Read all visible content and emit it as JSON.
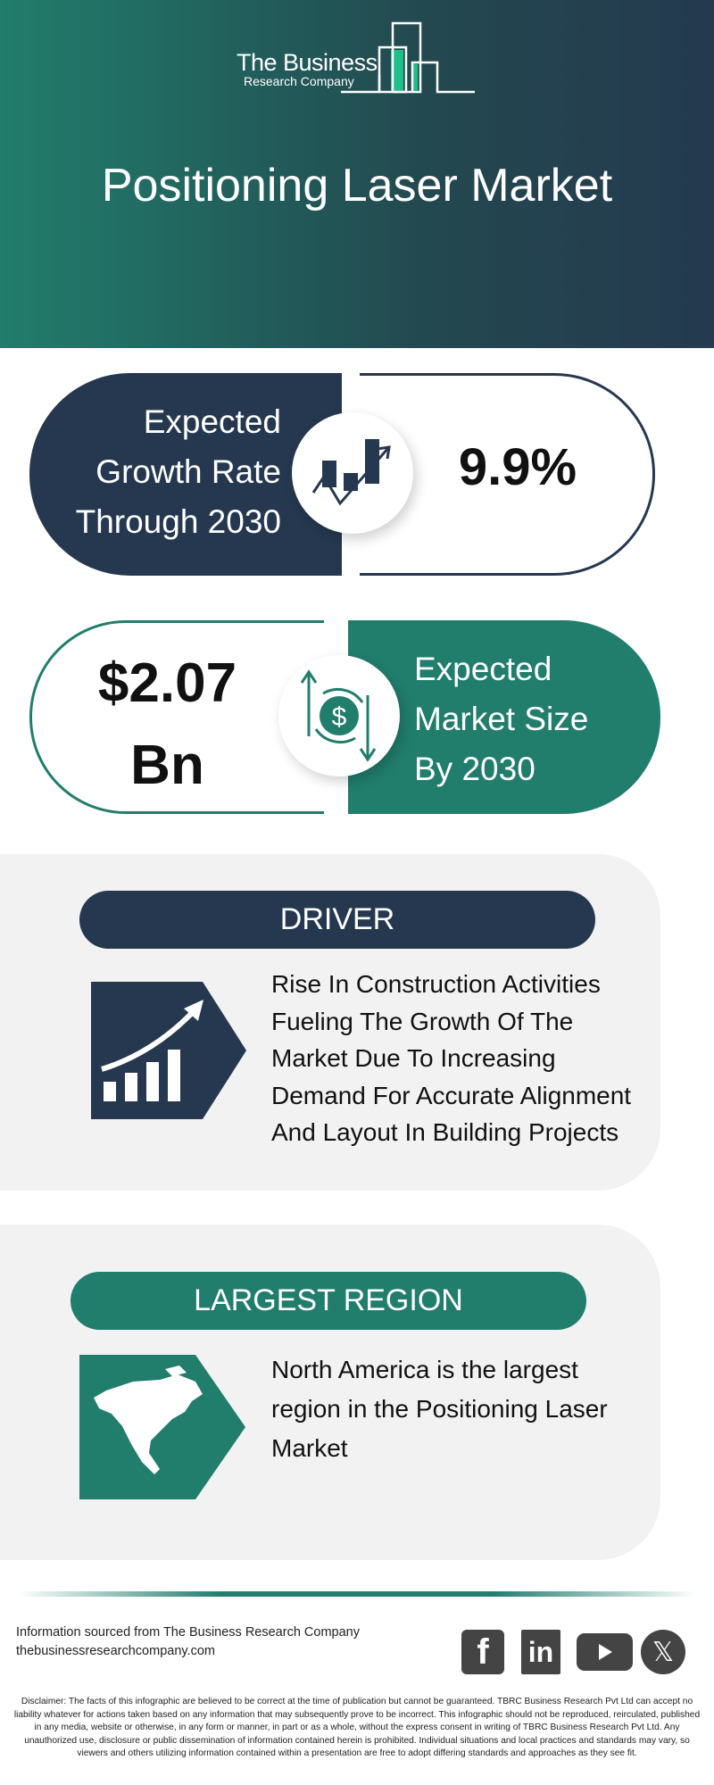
{
  "header": {
    "logo": {
      "line1": "The Business",
      "line2": "Research Company"
    },
    "title": "Positioning Laser Market"
  },
  "growth": {
    "label_lines": [
      "Expected",
      "Growth Rate",
      "Through 2030"
    ],
    "value": "9.9%",
    "icon": "growth-chart-icon"
  },
  "market_size": {
    "value_lines": [
      "$2.07",
      "Bn"
    ],
    "label_lines": [
      "Expected",
      "Market Size",
      "By 2030"
    ],
    "icon": "dollar-cycle-icon"
  },
  "driver": {
    "title": "DRIVER",
    "text": "Rise In Construction Activities Fueling The Growth Of The Market Due To Increasing Demand For Accurate Alignment And Layout In Building Projects",
    "icon": "rising-bars-icon"
  },
  "region": {
    "title": "LARGEST REGION",
    "text": "North America  is the largest region in the Positioning Laser Market",
    "icon": "north-america-map-icon"
  },
  "footer": {
    "source_line": "Information sourced from The Business Research Company",
    "website": "thebusinessresearchcompany.com",
    "social": [
      "facebook-icon",
      "linkedin-icon",
      "youtube-icon",
      "x-icon"
    ],
    "disclaimer": "Disclaimer: The facts of this infographic are believed to be correct at the time of publication but cannot be guaranteed. TBRC Business Research Pvt Ltd can accept no liability whatever for actions taken based on any information that may subsequently prove to be incorrect. This infographic should not be reproduced, reirculated, published in any media, website or otherwise, in any form or manner, in part or as a whole, without the express consent in writing of TBRC Business Research Pvt Ltd. Any unauthorized use, disclosure or public dissemination of information contained herein is prohibited. Individual situations and local practices and standards may vary, so viewers and others utilizing information contained within a presentation are free to adopt differing standards and approaches as they see fit."
  },
  "colors": {
    "navy": "#25384f",
    "teal": "#217d6c",
    "panel": "#f2f2f2",
    "logo_accent": "#1fbf8a"
  }
}
